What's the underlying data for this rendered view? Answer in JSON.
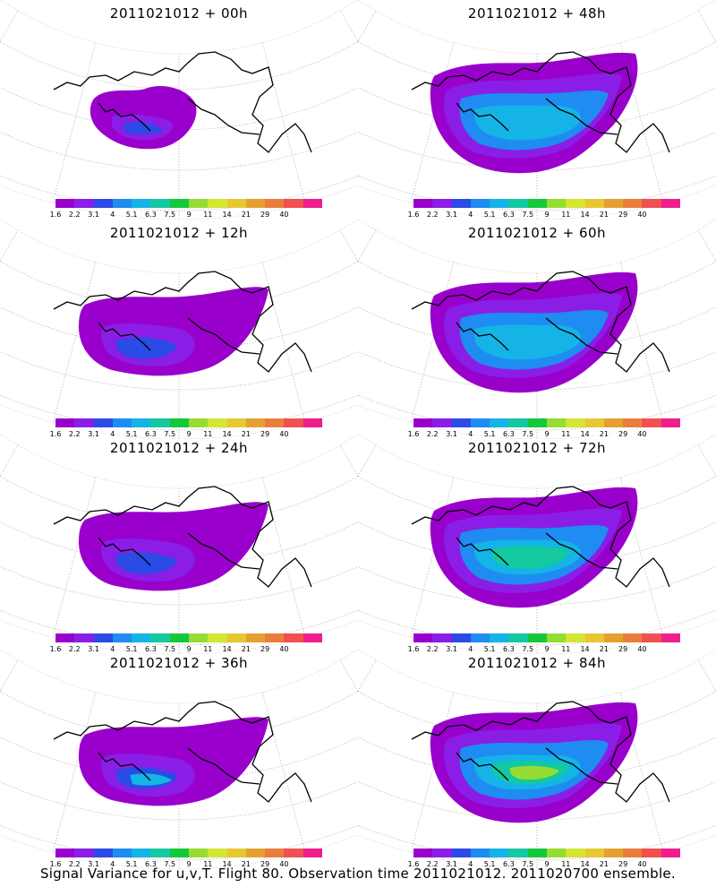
{
  "panels": [
    {
      "title": "2011021012 + 00h",
      "level": 0
    },
    {
      "title": "2011021012 + 48h",
      "level": 3
    },
    {
      "title": "2011021012 + 12h",
      "level": 1
    },
    {
      "title": "2011021012 + 60h",
      "level": 4
    },
    {
      "title": "2011021012 + 24h",
      "level": 2
    },
    {
      "title": "2011021012 + 72h",
      "level": 5
    },
    {
      "title": "2011021012 + 36h",
      "level": 2.5
    },
    {
      "title": "2011021012 + 84h",
      "level": 6
    }
  ],
  "colorbar": {
    "colors": [
      "#9900cc",
      "#8a1ee6",
      "#2a4be6",
      "#1e8cf0",
      "#14b4e6",
      "#14c8a0",
      "#14c83c",
      "#96dc32",
      "#d2e632",
      "#e6c832",
      "#e6a032",
      "#eb7d3c",
      "#f05050",
      "#f01e8c"
    ],
    "labels": [
      "1.6",
      "2.2",
      "3.1",
      "4",
      "5.1",
      "6.3",
      "7.5",
      "9",
      "11",
      "14",
      "21",
      "29",
      "40"
    ]
  },
  "footer": "Signal Variance for u,v,T. Flight 80. Observation time 2011021012. 2011020700 ensemble."
}
